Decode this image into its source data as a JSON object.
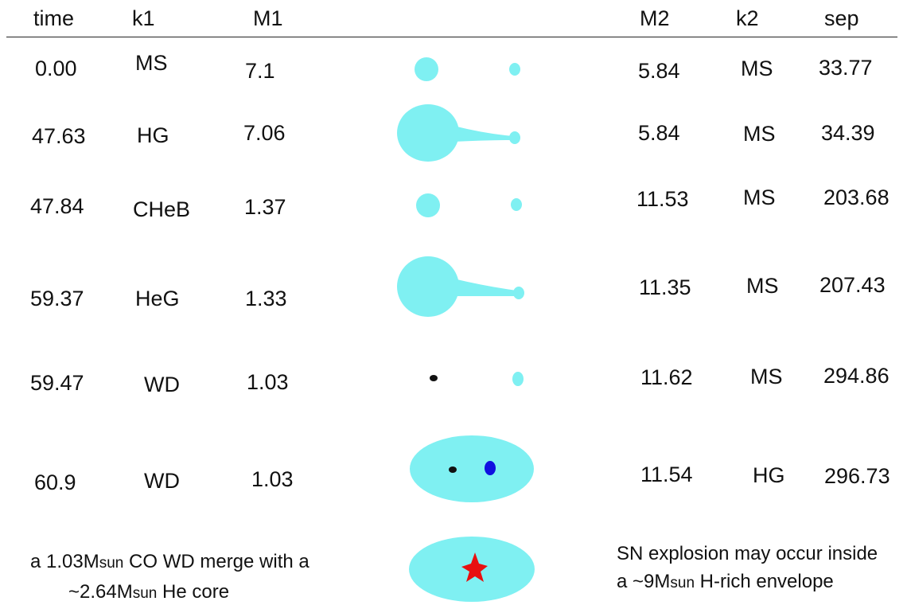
{
  "headers": {
    "time": "time",
    "k1": "k1",
    "M1": "M1",
    "M2": "M2",
    "k2": "k2",
    "sep": "sep"
  },
  "rows": [
    {
      "time": "0.00",
      "k1": "MS",
      "M1": "7.1",
      "M2": "5.84",
      "k2": "MS",
      "sep": "33.77"
    },
    {
      "time": "47.63",
      "k1": "HG",
      "M1": "7.06",
      "M2": "5.84",
      "k2": "MS",
      "sep": "34.39"
    },
    {
      "time": "47.84",
      "k1": "CHeB",
      "M1": "1.37",
      "M2": "11.53",
      "k2": "MS",
      "sep": "203.68"
    },
    {
      "time": "59.37",
      "k1": "HeG",
      "M1": "1.33",
      "M2": "11.35",
      "k2": "MS",
      "sep": "207.43"
    },
    {
      "time": "59.47",
      "k1": "WD",
      "M1": "1.03",
      "M2": "11.62",
      "k2": "MS",
      "sep": "294.86"
    },
    {
      "time": "60.9",
      "k1": "WD",
      "M1": "1.03",
      "M2": "11.54",
      "k2": "HG",
      "sep": "296.73"
    }
  ],
  "notes": {
    "left": {
      "line1_a": "a 1.03M",
      "line1_sub": "sun",
      "line1_b": " CO WD merge with a",
      "line2_a": "~2.64M",
      "line2_sub": "sun",
      "line2_b": " He core"
    },
    "right": {
      "line1": "SN explosion  may occur inside",
      "line2_a": "a ~9M",
      "line2_sub": "sun",
      "line2_b": " H-rich envelope"
    }
  },
  "colors": {
    "star": "#7ff0f2",
    "white_dwarf": "#111111",
    "companion_core": "#1010e0",
    "supernova": "#e81010"
  }
}
